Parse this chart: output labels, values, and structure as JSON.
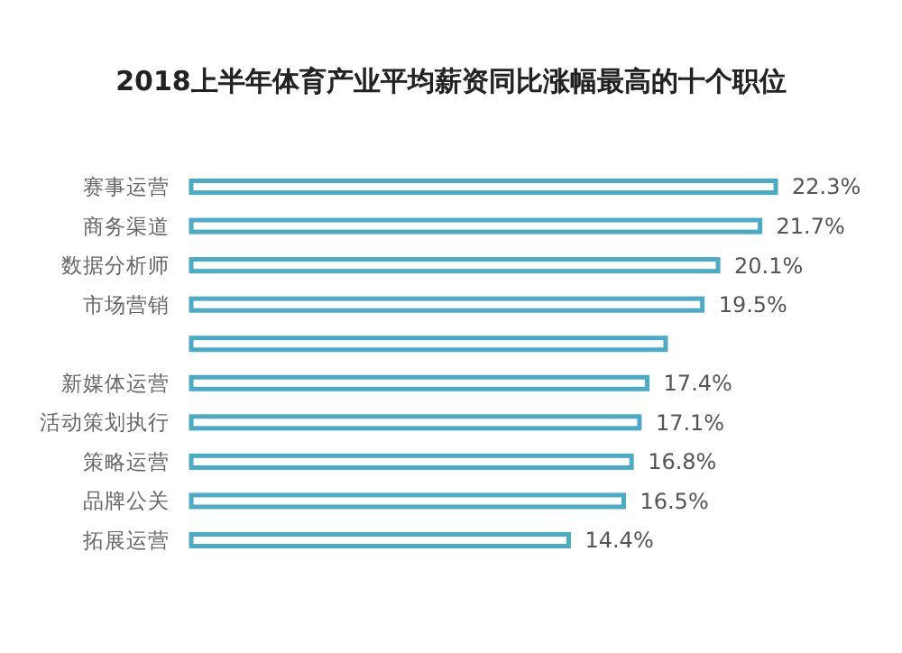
{
  "chart_data": {
    "type": "bar",
    "orientation": "horizontal",
    "title": "2018上半年体育产业平均薪资同比涨幅最高的十个职位",
    "categories": [
      "赛事运营",
      "商务渠道",
      "数据分析师",
      "市场营销",
      null,
      "新媒体运营",
      "活动策划执行",
      "策略运营",
      "品牌公关",
      "拓展运营"
    ],
    "values": [
      22.3,
      21.7,
      20.1,
      19.5,
      18.1,
      17.4,
      17.1,
      16.8,
      16.5,
      14.4
    ],
    "value_labels": [
      "22.3%",
      "21.7%",
      "20.1%",
      "19.5%",
      null,
      "17.4%",
      "17.1%",
      "16.8%",
      "16.5%",
      "14.4%"
    ],
    "color": "#4aabc6"
  }
}
